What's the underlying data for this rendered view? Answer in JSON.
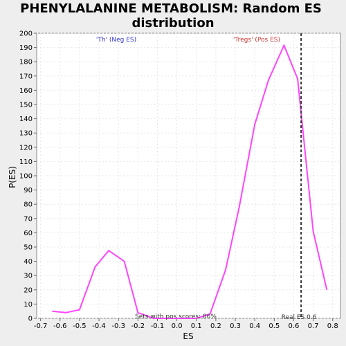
{
  "chart_data": {
    "type": "line",
    "title": [
      "PHENYLALANINE METABOLISM: Random ES",
      "distribution"
    ],
    "xlabel": "ES",
    "ylabel": "P(ES)",
    "xlim": [
      -0.72,
      0.84
    ],
    "ylim": [
      0,
      200
    ],
    "x_ticks": [
      -0.7,
      -0.6,
      -0.5,
      -0.4,
      -0.3,
      -0.2,
      -0.1,
      0.0,
      0.1,
      0.2,
      0.3,
      0.4,
      0.5,
      0.6,
      0.7,
      0.8
    ],
    "x_tick_labels": [
      "-0.7",
      "-0.6",
      "-0.5",
      "-0.4",
      "-0.3",
      "-0.2",
      "-0.1",
      "0.0",
      "0.1",
      "0.2",
      "0.3",
      "0.4",
      "0.5",
      "0.6",
      "0.7",
      "0.8"
    ],
    "y_ticks": [
      0,
      10,
      20,
      30,
      40,
      50,
      60,
      70,
      80,
      90,
      100,
      110,
      120,
      130,
      140,
      150,
      160,
      170,
      180,
      190,
      200
    ],
    "grid": true,
    "series": [
      {
        "color": "#ff44ff",
        "points": [
          [
            -0.64,
            5
          ],
          [
            -0.57,
            4
          ],
          [
            -0.5,
            6
          ],
          [
            -0.42,
            36
          ],
          [
            -0.35,
            47.5
          ],
          [
            -0.27,
            40
          ],
          [
            -0.2,
            4
          ],
          [
            -0.12,
            0
          ],
          [
            -0.05,
            0
          ],
          [
            0.02,
            0
          ],
          [
            0.1,
            0
          ],
          [
            0.17,
            3
          ],
          [
            0.25,
            34
          ],
          [
            0.32,
            78
          ],
          [
            0.4,
            136
          ],
          [
            0.47,
            167
          ],
          [
            0.55,
            191.5
          ],
          [
            0.62,
            168
          ],
          [
            0.7,
            61
          ],
          [
            0.77,
            20
          ]
        ]
      }
    ],
    "real_es": 0.638,
    "annotations": {
      "neg_label": "'Th' (Neg ES)",
      "pos_label": "'Tregs' (Pos ES)",
      "neg_color": "#3333cc",
      "pos_color": "#cc3333",
      "pos_scores": "Sets with pos scores: 86%",
      "real_es_label": "Real ES 0.6"
    },
    "colors": {
      "plot_background": "#ffffff",
      "page_background": "#eeeeee",
      "real_es_line": "#333333"
    }
  }
}
